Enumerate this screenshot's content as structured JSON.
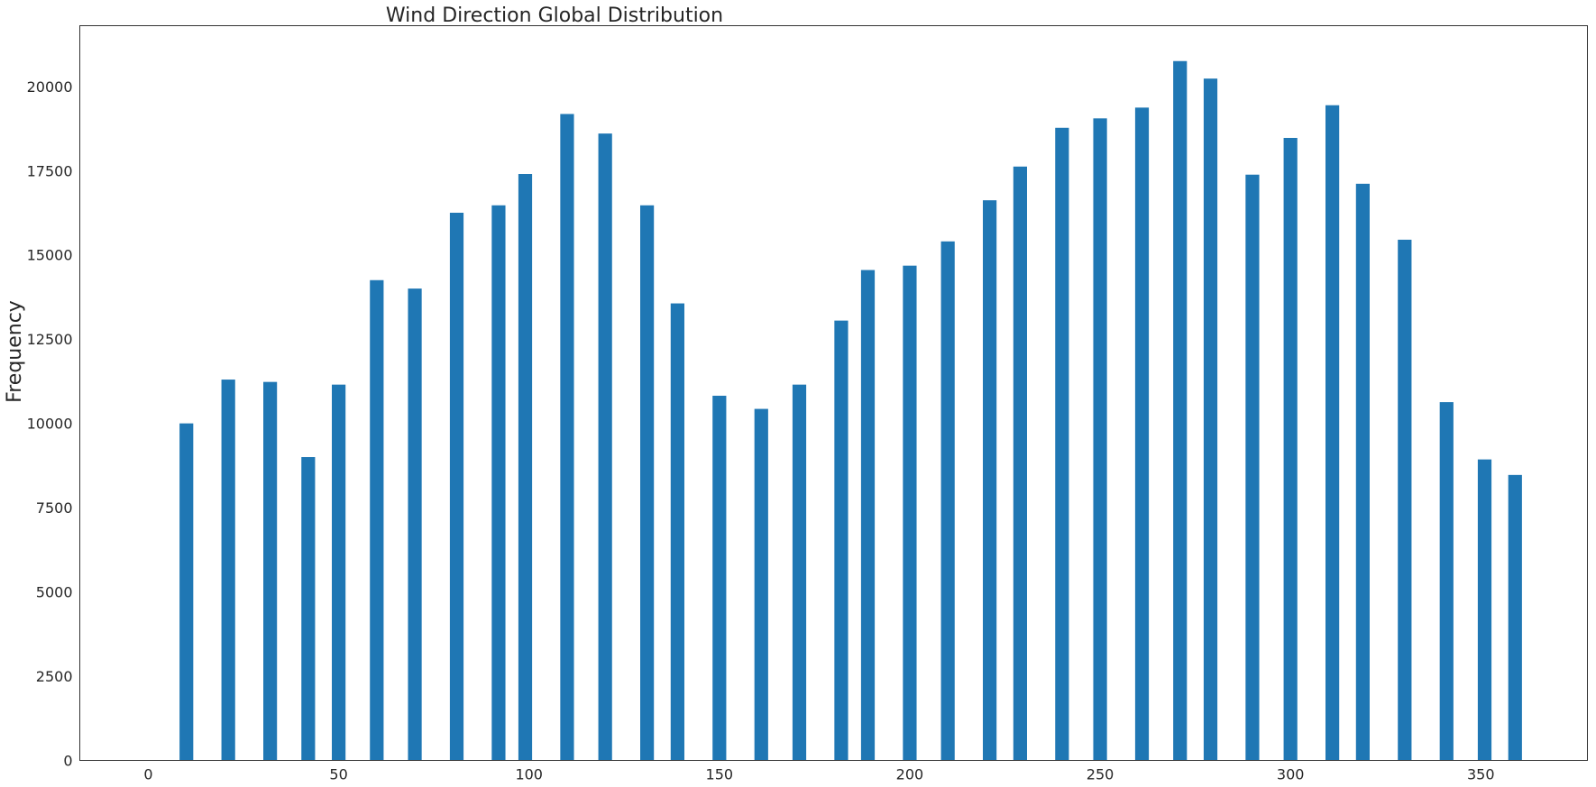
{
  "chart_data": {
    "type": "bar",
    "title": "Wind Direction Global Distribution",
    "xlabel": "",
    "ylabel": "Frequency",
    "xlim": [
      -18,
      378
    ],
    "ylim": [
      0,
      21800
    ],
    "x_ticks": [
      0,
      50,
      100,
      150,
      200,
      250,
      300,
      350
    ],
    "y_ticks": [
      0,
      2500,
      5000,
      7500,
      10000,
      12500,
      15000,
      17500,
      20000
    ],
    "grid": false,
    "bar_width": 3.6,
    "color": "#1f77b4",
    "x": [
      10,
      21,
      32,
      42,
      50,
      60,
      70,
      81,
      92,
      99,
      110,
      120,
      131,
      139,
      150,
      161,
      171,
      182,
      189,
      200,
      210,
      221,
      229,
      240,
      250,
      261,
      271,
      279,
      290,
      300,
      311,
      319,
      330,
      341,
      351,
      359
    ],
    "values": [
      10000,
      11300,
      11230,
      9000,
      11150,
      14250,
      14000,
      16250,
      16470,
      17400,
      19180,
      18600,
      16470,
      13560,
      10820,
      10430,
      11150,
      13050,
      14550,
      14680,
      15400,
      16620,
      17620,
      18770,
      19050,
      19370,
      20750,
      20230,
      17380,
      18470,
      19440,
      17110,
      15450,
      10630,
      8930,
      8470
    ]
  }
}
